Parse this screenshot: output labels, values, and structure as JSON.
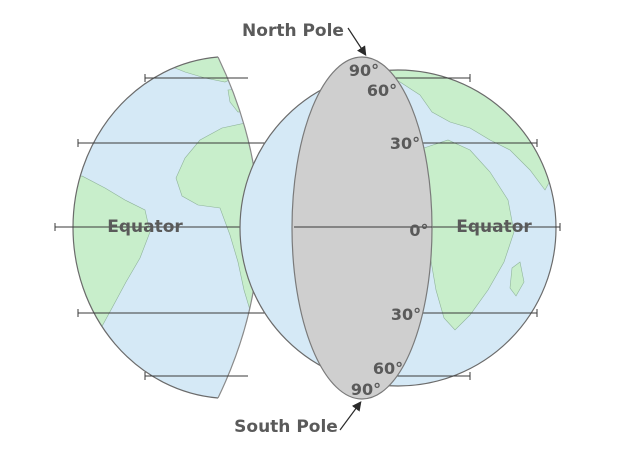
{
  "labels": {
    "north_pole": "North Pole",
    "south_pole": "South Pole",
    "equator_left": "Equator",
    "equator_right": "Equator"
  },
  "latitudes": {
    "north_90": "90°",
    "north_60": "60°",
    "north_30": "30°",
    "equator": "0°",
    "south_30": "30°",
    "south_60": "60°",
    "south_90": "90°"
  },
  "colors": {
    "ocean": "#d5e9f6",
    "land": "#c8eecb",
    "cut_face": "#cfcfcf",
    "text": "#5a5a5a"
  }
}
